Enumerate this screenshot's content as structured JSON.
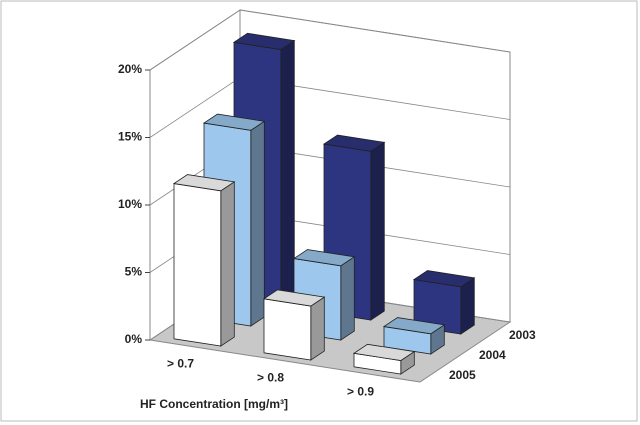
{
  "chart_data": {
    "type": "bar3d",
    "x_label": "HF Concentration [mg/m³]",
    "categories": [
      "> 0.7",
      "> 0.8",
      "> 0.9"
    ],
    "series": [
      {
        "name": "2003",
        "color": "#2e3580",
        "values": [
          19,
          12.5,
          3.5
        ]
      },
      {
        "name": "2004",
        "color": "#9dc7ec",
        "values": [
          14.5,
          5.5,
          1.5
        ]
      },
      {
        "name": "2005",
        "color": "#ffffff",
        "values": [
          11.5,
          4,
          1
        ]
      }
    ],
    "ylim": [
      0,
      20
    ],
    "yticks": [
      {
        "value": 0,
        "label": "0%"
      },
      {
        "value": 5,
        "label": "5%"
      },
      {
        "value": 10,
        "label": "10%"
      },
      {
        "value": 15,
        "label": "15%"
      },
      {
        "value": 20,
        "label": "20%"
      }
    ],
    "grid": true,
    "floor_color": "#c8c8c8"
  }
}
